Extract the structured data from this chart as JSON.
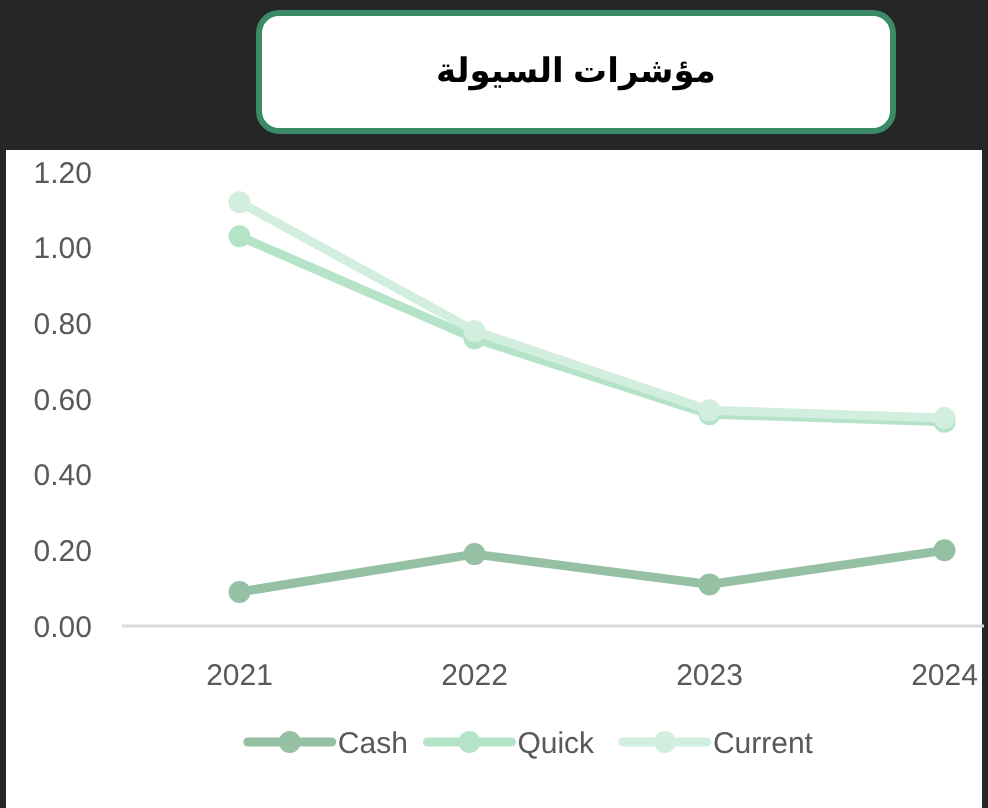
{
  "chart_data": {
    "type": "line",
    "title": "مؤشرات السيولة",
    "categories": [
      "2021",
      "2022",
      "2023",
      "2024"
    ],
    "series": [
      {
        "name": "Cash",
        "color": "#95c0a4",
        "values": [
          0.09,
          0.19,
          0.11,
          0.2
        ]
      },
      {
        "name": "Quick",
        "color": "#b4e3c8",
        "values": [
          1.03,
          0.76,
          0.56,
          0.54
        ]
      },
      {
        "name": "Current",
        "color": "#d2eede",
        "values": [
          1.12,
          0.78,
          0.57,
          0.55
        ]
      }
    ],
    "ylim": [
      0,
      1.2
    ],
    "yticks": [
      {
        "value": 0,
        "label": "0.00"
      },
      {
        "value": 0.2,
        "label": "0.20"
      },
      {
        "value": 0.4,
        "label": "0.40"
      },
      {
        "value": 0.6,
        "label": "0.60"
      },
      {
        "value": 0.8,
        "label": "0.80"
      },
      {
        "value": 1,
        "label": "1.00"
      },
      {
        "value": 1.2,
        "label": "1.20"
      }
    ],
    "grid": false,
    "legend": "bottom",
    "marker": "circle",
    "line_style": "solid"
  }
}
